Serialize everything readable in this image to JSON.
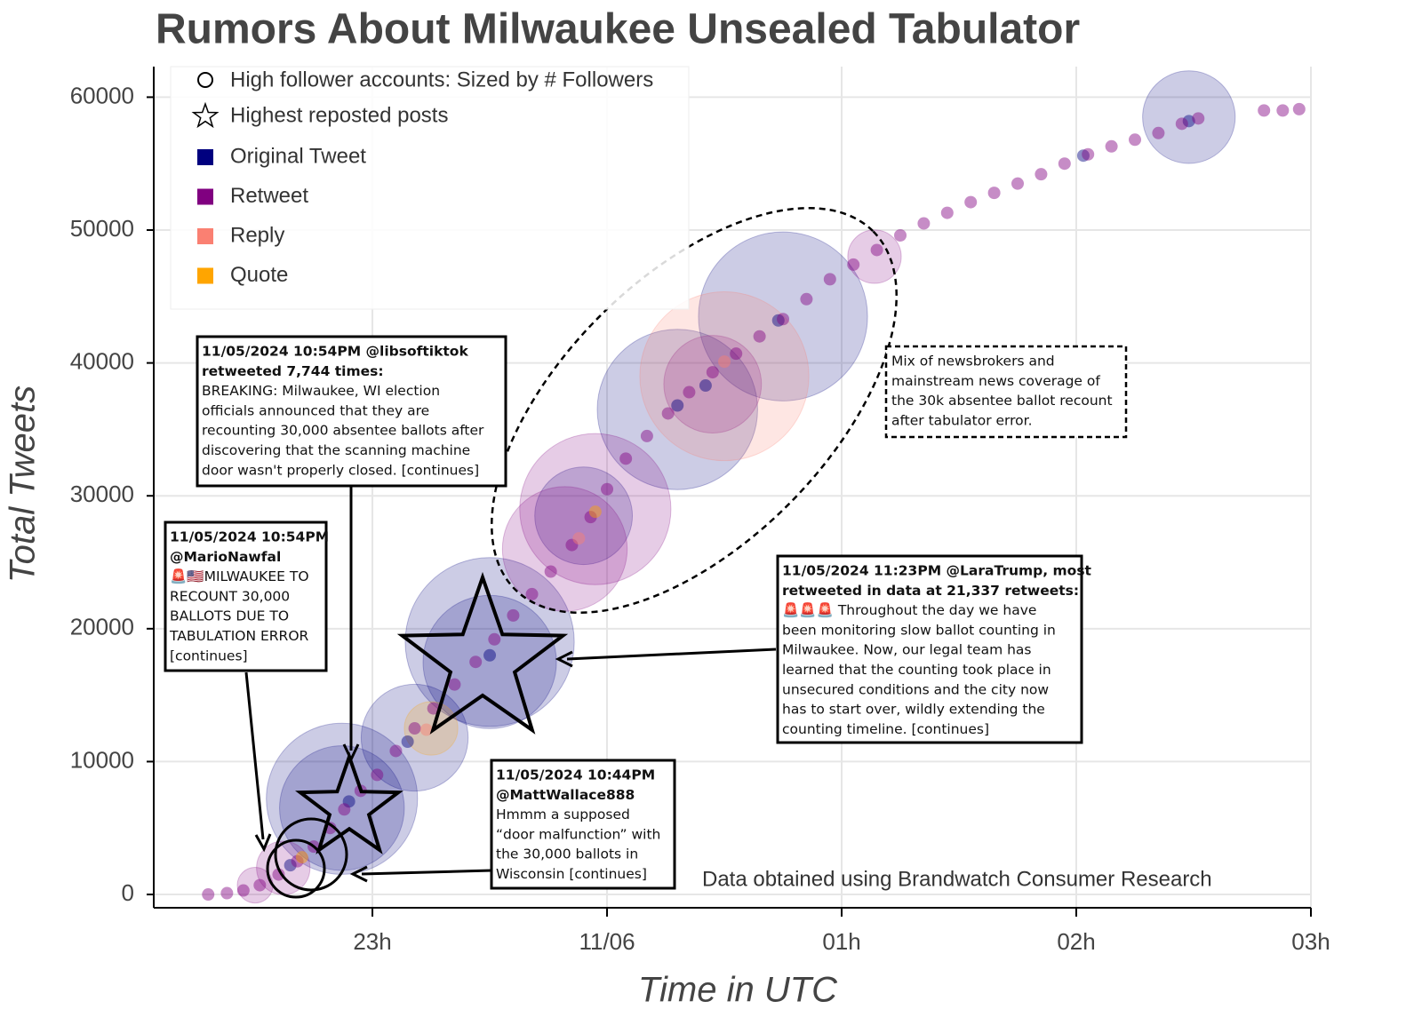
{
  "chart_data": {
    "type": "scatter",
    "title": "Rumors About Milwaukee Unsealed Tabulator",
    "x_label": "Time in UTC",
    "y_label": "Total Tweets",
    "xlim": [
      22.068,
      27.0
    ],
    "ylim": [
      -1000,
      62300
    ],
    "xticks": [
      {
        "value": 23,
        "label": "23h"
      },
      {
        "value": 24,
        "label": "11/06"
      },
      {
        "value": 25,
        "label": "01h"
      },
      {
        "value": 26,
        "label": "02h"
      },
      {
        "value": 27,
        "label": "03h"
      }
    ],
    "yticks": [
      0,
      10000,
      20000,
      30000,
      40000,
      50000,
      60000
    ],
    "grid": true,
    "bubble_legend": "High follower accounts: Sized by # Followers",
    "star_legend": "Highest reposted posts",
    "source_note": "Data obtained using Brandwatch Consumer Research",
    "series": [
      {
        "name": "Original Tweet",
        "color": "#00007f",
        "x": [
          22.65,
          22.9,
          23.15,
          23.5,
          24.3,
          24.42,
          24.73,
          26.48,
          26.03,
          22.87,
          22.87,
          23.18,
          23.5,
          23.5,
          24.3,
          24.75,
          23.9,
          26.48
        ],
        "values": [
          2200,
          7000,
          11500,
          18000,
          36800,
          38300,
          43200,
          58200,
          55600,
          7200,
          6500,
          11800,
          17500,
          19000,
          36500,
          43500,
          28500,
          58500
        ],
        "sizes": [
          null,
          null,
          null,
          null,
          null,
          null,
          null,
          null,
          null,
          7.2,
          4.9,
          3.6,
          5.6,
          9.0,
          8.1,
          9.0,
          3.0,
          2.7
        ]
      },
      {
        "name": "Retweet",
        "color": "#800080",
        "x": [
          22.3,
          22.38,
          22.45,
          22.52,
          22.6,
          22.68,
          22.75,
          22.82,
          22.88,
          22.95,
          23.02,
          23.1,
          23.18,
          23.26,
          23.35,
          23.44,
          23.52,
          23.6,
          23.68,
          23.76,
          23.85,
          23.93,
          24.0,
          24.08,
          24.17,
          24.26,
          24.35,
          24.45,
          24.55,
          24.65,
          24.75,
          24.85,
          24.95,
          25.05,
          25.15,
          25.25,
          25.35,
          25.45,
          25.55,
          25.65,
          25.75,
          25.85,
          25.95,
          26.05,
          26.15,
          26.25,
          26.35,
          26.45,
          26.52,
          26.8,
          26.88,
          26.95,
          22.62,
          23.95,
          24.45,
          25.14,
          22.5,
          23.82
        ],
        "values": [
          0,
          100,
          300,
          700,
          1500,
          2500,
          3600,
          5000,
          6400,
          7800,
          9000,
          10800,
          12500,
          14000,
          15800,
          17500,
          19200,
          21000,
          22600,
          24300,
          26300,
          28400,
          30500,
          32800,
          34500,
          36200,
          37800,
          39300,
          40700,
          42000,
          43300,
          44800,
          46300,
          47400,
          48500,
          49600,
          50500,
          51300,
          52100,
          52800,
          53500,
          54200,
          55000,
          55700,
          56300,
          56800,
          57300,
          58000,
          58400,
          59000,
          59000,
          59100,
          2000,
          29000,
          38400,
          48000,
          700,
          26000
        ],
        "sizes": [
          null,
          null,
          null,
          null,
          null,
          null,
          null,
          null,
          null,
          null,
          null,
          null,
          null,
          null,
          null,
          null,
          null,
          null,
          null,
          null,
          null,
          null,
          null,
          null,
          null,
          null,
          null,
          null,
          null,
          null,
          null,
          null,
          null,
          null,
          null,
          null,
          null,
          null,
          null,
          null,
          null,
          null,
          null,
          null,
          null,
          null,
          null,
          null,
          null,
          null,
          null,
          null,
          0.9,
          7.2,
          3.0,
          0.9,
          0.4,
          4.9
        ]
      },
      {
        "name": "Reply",
        "color": "#fa8072",
        "x": [
          23.23,
          23.88,
          24.5,
          24.5
        ],
        "values": [
          12400,
          26800,
          40100,
          39000
        ],
        "sizes": [
          null,
          null,
          null,
          9.0
        ]
      },
      {
        "name": "Quote",
        "color": "#ffa500",
        "x": [
          22.7,
          23.95,
          23.25
        ],
        "values": [
          2800,
          28800,
          12500
        ],
        "sizes": [
          null,
          null,
          0.9
        ]
      }
    ],
    "annotations": [
      {
        "header": [
          "11/05/2024  10:54PM @libsoftiktok",
          "retweeted 7,744 times:"
        ],
        "body": [
          "BREAKING: Milwaukee, WI election",
          "officials announced that they are",
          "recounting 30,000 absentee ballots after",
          "discovering that the scanning machine",
          "door wasn't properly closed. [continues]"
        ]
      },
      {
        "header": [
          "11/05/2024  10:54PM",
          "@MarioNawfal"
        ],
        "body": [
          "🚨🇺🇸MILWAUKEE TO",
          "RECOUNT 30,000",
          "BALLOTS DUE TO",
          "TABULATION ERROR",
          "[continues]"
        ]
      },
      {
        "header": [
          "11/05/2024  11:23PM @LaraTrump, most",
          "retweeted in data at 21,337 retweets:"
        ],
        "body": [
          "🚨🚨🚨 Throughout the day we have",
          "been monitoring slow ballot counting in",
          "Milwaukee. Now, our legal team has",
          "learned that the counting took place in",
          "unsecured conditions and the city now",
          "has to start over, wildly extending the",
          "counting timeline. [continues]"
        ]
      },
      {
        "header": [
          "11/05/2024  10:44PM",
          "@MattWallace888"
        ],
        "body": [
          "Hmmm a supposed",
          "“door malfunction” with",
          "the 30,000 ballots in",
          "Wisconsin [continues]"
        ]
      }
    ],
    "note": [
      "Mix of newsbrokers and",
      "mainstream news coverage of",
      "the 30k absentee ballot recount",
      "after tabulator error."
    ]
  }
}
